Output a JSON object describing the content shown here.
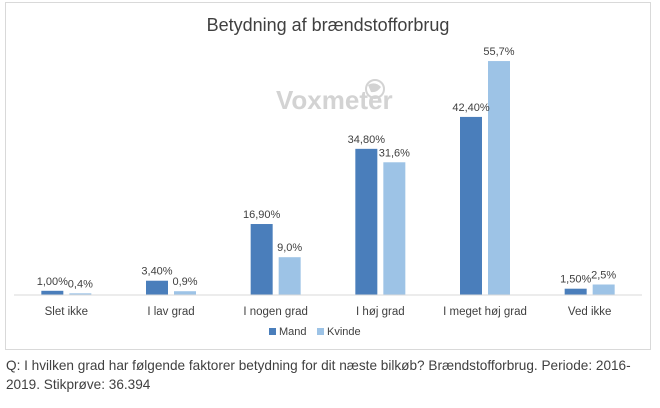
{
  "chart_data": {
    "type": "bar",
    "title": "Betydning af brændstofforbrug",
    "categories": [
      "Slet ikke",
      "I lav grad",
      "I nogen grad",
      "I høj grad",
      "I meget høj grad",
      "Ved ikke"
    ],
    "series": [
      {
        "name": "Mand",
        "values": [
          1.0,
          3.4,
          16.9,
          34.8,
          42.4,
          1.5
        ],
        "labels": [
          "1,00%",
          "3,40%",
          "16,90%",
          "34,80%",
          "42,40%",
          "1,50%"
        ],
        "color": "#4a7ebb"
      },
      {
        "name": "Kvinde",
        "values": [
          0.4,
          0.9,
          9.0,
          31.6,
          55.7,
          2.5
        ],
        "labels": [
          "0,4%",
          "0,9%",
          "9,0%",
          "31,6%",
          "55,7%",
          "2,5%"
        ],
        "color": "#9dc3e6"
      }
    ],
    "ylim": [
      0,
      60
    ],
    "grid": false,
    "legend": "bottom",
    "watermark": "Voxmeter"
  },
  "caption": "Q: I hvilken grad har følgende faktorer betydning for dit næste bilkøb? Brændstofforbrug. Periode: 2016-2019. Stikprøve: 36.394"
}
